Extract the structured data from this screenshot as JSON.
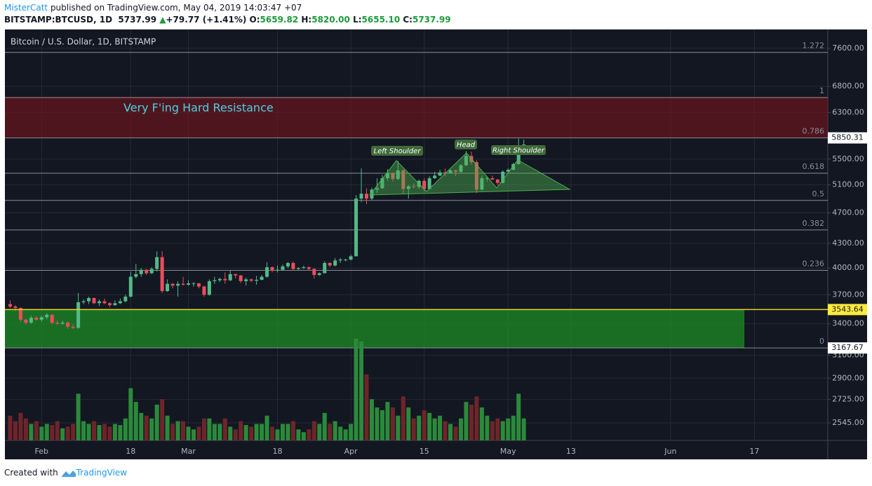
{
  "header": {
    "author": "MisterCatt",
    "published": "published on TradingView.com, May 04, 2019 14:03:47 +07",
    "symbol": "BITSTAMP:BTCUSD, 1D",
    "last": "5737.99",
    "change_arrow": "▲",
    "change": "+79.77 (+1.41%)",
    "ohlc": [
      {
        "label": "O:",
        "value": "5659.82"
      },
      {
        "label": "H:",
        "value": "5820.00"
      },
      {
        "label": "L:",
        "value": "5655.10"
      },
      {
        "label": "C:",
        "value": "5737.99"
      }
    ]
  },
  "footer": {
    "text": "Created with",
    "brand": "TradingView"
  },
  "chart_data": {
    "type": "candlestick",
    "title": "Bitcoin / U.S. Dollar, 1D, BITSTAMP",
    "log_scale": true,
    "grid": true,
    "grid_color": "#252a36",
    "up_color": "#53b987",
    "down_color": "#eb4d5c",
    "volume_up_color": "#2b8a3a",
    "volume_down_color": "#6e2529",
    "xlim": [
      "2019-01-25",
      "2019-07-01"
    ],
    "ylim": [
      2418,
      8030
    ],
    "xticks": [
      {
        "value": "2019-02-01",
        "label": "Feb"
      },
      {
        "value": "2019-02-18",
        "label": "18"
      },
      {
        "value": "2019-03-01",
        "label": "Mar"
      },
      {
        "value": "2019-03-18",
        "label": "18"
      },
      {
        "value": "2019-04-01",
        "label": "Apr"
      },
      {
        "value": "2019-04-15",
        "label": "15"
      },
      {
        "value": "2019-05-01",
        "label": "May"
      },
      {
        "value": "2019-05-13",
        "label": "13"
      },
      {
        "value": "2019-06-01",
        "label": "Jun"
      },
      {
        "value": "2019-06-17",
        "label": "17"
      }
    ],
    "yticks": [
      {
        "value": 7600,
        "label": "7600.00"
      },
      {
        "value": 6800,
        "label": "6800.00"
      },
      {
        "value": 6300,
        "label": "6300.00"
      },
      {
        "value": 5500,
        "label": "5500.00"
      },
      {
        "value": 5100,
        "label": "5100.00"
      },
      {
        "value": 4700,
        "label": "4700.00"
      },
      {
        "value": 4300,
        "label": "4300.00"
      },
      {
        "value": 4000,
        "label": "4000.00"
      },
      {
        "value": 3700,
        "label": "3700.00"
      },
      {
        "value": 3400,
        "label": "3400.00"
      },
      {
        "value": 3100,
        "label": "3100.00"
      },
      {
        "value": 2900,
        "label": "2900.00"
      },
      {
        "value": 2725,
        "label": "2725.00"
      },
      {
        "value": 2545,
        "label": "2545.00"
      }
    ],
    "zones": [
      {
        "label": "Very F'ing Hard Resistance",
        "range": [
          5855,
          6590
        ],
        "x": [
          "2019-01-20",
          "2019-07-05"
        ],
        "color": "rgba(120,20,28,0.6)"
      },
      {
        "range": [
          3170,
          3540
        ],
        "x": [
          "2019-01-20",
          "2019-06-15"
        ],
        "color": "rgba(30,140,38,0.75)"
      }
    ],
    "fib": {
      "color": "#8a8d96",
      "levels": [
        1.272,
        1,
        0.786,
        0.618,
        0.5,
        0.382,
        0.236,
        0
      ],
      "prices": [
        7509.6,
        6581,
        5850.31,
        5277,
        4874,
        4471,
        3973,
        3167.67
      ]
    },
    "badges": [
      {
        "value": 5850.31,
        "bg": "#ffffff",
        "fg": "#131722"
      },
      {
        "value": 3543.64,
        "bg": "#ffeb3b",
        "fg": "#131722",
        "line": "#e6d21e"
      },
      {
        "value": 3167.67,
        "bg": "#ffffff",
        "fg": "#131722"
      }
    ],
    "patterns": [
      "Left Shoulder",
      "Head",
      "Right Shoulder"
    ],
    "candles": {
      "x": [
        "2019-01-26",
        "2019-01-27",
        "2019-01-28",
        "2019-01-29",
        "2019-01-30",
        "2019-01-31",
        "2019-02-01",
        "2019-02-02",
        "2019-02-03",
        "2019-02-04",
        "2019-02-05",
        "2019-02-06",
        "2019-02-07",
        "2019-02-08",
        "2019-02-09",
        "2019-02-10",
        "2019-02-11",
        "2019-02-12",
        "2019-02-13",
        "2019-02-14",
        "2019-02-15",
        "2019-02-16",
        "2019-02-17",
        "2019-02-18",
        "2019-02-19",
        "2019-02-20",
        "2019-02-21",
        "2019-02-22",
        "2019-02-23",
        "2019-02-24",
        "2019-02-25",
        "2019-02-26",
        "2019-02-27",
        "2019-02-28",
        "2019-03-01",
        "2019-03-02",
        "2019-03-03",
        "2019-03-04",
        "2019-03-05",
        "2019-03-06",
        "2019-03-07",
        "2019-03-08",
        "2019-03-09",
        "2019-03-10",
        "2019-03-11",
        "2019-03-12",
        "2019-03-13",
        "2019-03-14",
        "2019-03-15",
        "2019-03-16",
        "2019-03-17",
        "2019-03-18",
        "2019-03-19",
        "2019-03-20",
        "2019-03-21",
        "2019-03-22",
        "2019-03-23",
        "2019-03-24",
        "2019-03-25",
        "2019-03-26",
        "2019-03-27",
        "2019-03-28",
        "2019-03-29",
        "2019-03-30",
        "2019-03-31",
        "2019-04-01",
        "2019-04-02",
        "2019-04-03",
        "2019-04-04",
        "2019-04-05",
        "2019-04-06",
        "2019-04-07",
        "2019-04-08",
        "2019-04-09",
        "2019-04-10",
        "2019-04-11",
        "2019-04-12",
        "2019-04-13",
        "2019-04-14",
        "2019-04-15",
        "2019-04-16",
        "2019-04-17",
        "2019-04-18",
        "2019-04-19",
        "2019-04-20",
        "2019-04-21",
        "2019-04-22",
        "2019-04-23",
        "2019-04-24",
        "2019-04-25",
        "2019-04-26",
        "2019-04-27",
        "2019-04-28",
        "2019-04-29",
        "2019-04-30",
        "2019-05-01",
        "2019-05-02",
        "2019-05-03",
        "2019-05-04"
      ],
      "open": [
        3600,
        3575,
        3560,
        3440,
        3410,
        3460,
        3440,
        3465,
        3490,
        3410,
        3400,
        3410,
        3370,
        3360,
        3620,
        3630,
        3665,
        3610,
        3630,
        3610,
        3590,
        3610,
        3630,
        3680,
        3900,
        3930,
        3980,
        3940,
        3990,
        4130,
        3740,
        3820,
        3800,
        3820,
        3810,
        3825,
        3825,
        3790,
        3700,
        3850,
        3860,
        3875,
        3860,
        3930,
        3915,
        3850,
        3870,
        3855,
        3865,
        3900,
        4010,
        3970,
        3980,
        4020,
        4060,
        3990,
        4000,
        4010,
        3990,
        3920,
        3940,
        4060,
        4030,
        4090,
        4100,
        4100,
        4140,
        4900,
        4970,
        4900,
        5030,
        5050,
        5200,
        5280,
        5190,
        5320,
        5040,
        5080,
        5070,
        5160,
        5040,
        5200,
        5240,
        5290,
        5280,
        5320,
        5300,
        5400,
        5550,
        5450,
        5030,
        5200,
        5200,
        5180,
        5130,
        5300,
        5330,
        5420,
        5659.82
      ],
      "high": [
        3640,
        3590,
        3565,
        3450,
        3480,
        3475,
        3480,
        3505,
        3495,
        3430,
        3430,
        3425,
        3395,
        3720,
        3650,
        3680,
        3670,
        3650,
        3660,
        3620,
        3640,
        3660,
        3700,
        3960,
        4050,
        4000,
        3990,
        4010,
        4200,
        4200,
        3870,
        3830,
        3850,
        3900,
        3860,
        3840,
        3830,
        3800,
        3870,
        3900,
        3890,
        3950,
        3970,
        3935,
        3920,
        3890,
        3880,
        3910,
        3920,
        4070,
        4020,
        4030,
        4040,
        4070,
        4080,
        4010,
        4030,
        4020,
        4000,
        3950,
        4080,
        4070,
        4120,
        4120,
        4110,
        4160,
        4950,
        5350,
        5050,
        5060,
        5200,
        5250,
        5340,
        5290,
        5470,
        5340,
        5100,
        5120,
        5180,
        5200,
        5230,
        5300,
        5330,
        5350,
        5340,
        5330,
        5420,
        5630,
        5620,
        5480,
        5240,
        5230,
        5240,
        5190,
        5320,
        5350,
        5440,
        5840,
        5820
      ],
      "low": [
        3560,
        3530,
        3420,
        3390,
        3400,
        3430,
        3420,
        3445,
        3395,
        3390,
        3390,
        3350,
        3350,
        3350,
        3600,
        3600,
        3600,
        3580,
        3600,
        3570,
        3580,
        3600,
        3620,
        3670,
        3880,
        3900,
        3920,
        3930,
        3960,
        3720,
        3730,
        3770,
        3680,
        3800,
        3800,
        3790,
        3770,
        3680,
        3690,
        3820,
        3840,
        3820,
        3850,
        3880,
        3830,
        3800,
        3840,
        3810,
        3860,
        3890,
        3950,
        3950,
        3970,
        4000,
        3970,
        3980,
        3990,
        3970,
        3880,
        3910,
        3940,
        4010,
        4020,
        4060,
        4080,
        4090,
        4140,
        4850,
        4820,
        4880,
        4980,
        5040,
        5160,
        5150,
        5170,
        4970,
        4900,
        5050,
        5040,
        5000,
        5030,
        5190,
        5230,
        5230,
        5270,
        5230,
        5280,
        5390,
        5410,
        4980,
        5020,
        5150,
        5170,
        5100,
        5120,
        5290,
        5320,
        5410,
        5655.1
      ],
      "close": [
        3575,
        3560,
        3440,
        3410,
        3460,
        3440,
        3465,
        3490,
        3410,
        3400,
        3410,
        3370,
        3360,
        3620,
        3630,
        3665,
        3610,
        3630,
        3610,
        3590,
        3610,
        3630,
        3680,
        3900,
        3930,
        3980,
        3940,
        3990,
        4130,
        3740,
        3820,
        3800,
        3820,
        3810,
        3825,
        3825,
        3790,
        3700,
        3850,
        3860,
        3875,
        3860,
        3930,
        3915,
        3850,
        3870,
        3855,
        3865,
        3900,
        4010,
        3970,
        3980,
        4020,
        4060,
        3990,
        4000,
        4010,
        3990,
        3920,
        3940,
        4060,
        4030,
        4090,
        4100,
        4100,
        4140,
        4900,
        4970,
        4900,
        5030,
        5050,
        5200,
        5280,
        5190,
        5320,
        5040,
        5080,
        5070,
        5160,
        5040,
        5200,
        5240,
        5290,
        5280,
        5320,
        5300,
        5400,
        5550,
        5450,
        5030,
        5200,
        5200,
        5180,
        5130,
        5300,
        5330,
        5420,
        5659.82,
        5737.99
      ],
      "volume": [
        45,
        35,
        50,
        40,
        30,
        35,
        25,
        30,
        28,
        35,
        22,
        25,
        30,
        85,
        35,
        30,
        35,
        28,
        30,
        25,
        30,
        28,
        40,
        95,
        70,
        50,
        45,
        40,
        65,
        75,
        45,
        30,
        35,
        35,
        25,
        20,
        25,
        40,
        40,
        30,
        30,
        40,
        25,
        20,
        35,
        28,
        25,
        30,
        30,
        45,
        25,
        20,
        30,
        30,
        35,
        20,
        15,
        20,
        35,
        30,
        50,
        30,
        35,
        25,
        20,
        30,
        185,
        180,
        120,
        75,
        60,
        55,
        70,
        60,
        45,
        80,
        60,
        40,
        45,
        55,
        50,
        40,
        45,
        35,
        30,
        25,
        40,
        70,
        65,
        80,
        60,
        45,
        35,
        40,
        35,
        40,
        45,
        85,
        40
      ]
    }
  }
}
